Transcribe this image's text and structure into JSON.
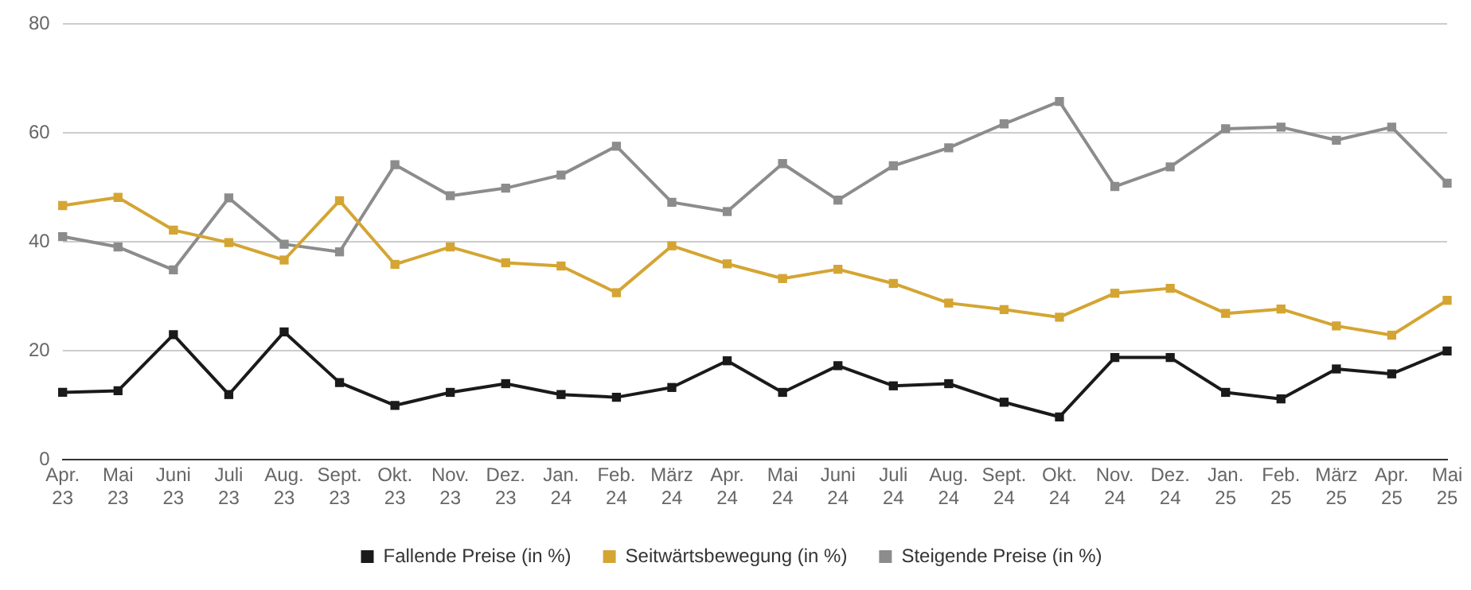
{
  "chart_data": {
    "type": "line",
    "categories": [
      "Apr. 23",
      "Mai 23",
      "Juni 23",
      "Juli 23",
      "Aug. 23",
      "Sept. 23",
      "Okt. 23",
      "Nov. 23",
      "Dez. 23",
      "Jan. 24",
      "Feb. 24",
      "März 24",
      "Apr. 24",
      "Mai 24",
      "Juni 24",
      "Juli 24",
      "Aug. 24",
      "Sept. 24",
      "Okt. 24",
      "Nov. 24",
      "Dez. 24",
      "Jan. 25",
      "Feb. 25",
      "März 25",
      "Apr. 25",
      "Mai 25"
    ],
    "series": [
      {
        "name": "Fallende Preise (in %)",
        "color": "#1a1a1a",
        "values": [
          12.4,
          12.7,
          23,
          12,
          23.5,
          14.2,
          10,
          12.4,
          14,
          12,
          11.5,
          13.3,
          18.2,
          12.4,
          17.3,
          13.6,
          14,
          10.6,
          7.9,
          18.8,
          18.8,
          12.4,
          11.2,
          16.7,
          15.8,
          20
        ]
      },
      {
        "name": "Seitwärtsbewegung (in %)",
        "color": "#d4a533",
        "values": [
          46.7,
          48.2,
          42.2,
          39.9,
          36.7,
          47.6,
          35.9,
          39.1,
          36.2,
          35.6,
          30.7,
          39.3,
          36,
          33.3,
          35,
          32.4,
          28.8,
          27.6,
          26.2,
          30.6,
          31.5,
          26.9,
          27.7,
          24.6,
          22.9,
          29.3
        ]
      },
      {
        "name": "Steigende Preise (in %)",
        "color": "#8c8c8c",
        "values": [
          41,
          39.1,
          34.9,
          48.1,
          39.6,
          38.2,
          54.2,
          48.5,
          49.9,
          52.3,
          57.6,
          47.3,
          45.6,
          54.4,
          47.7,
          54,
          57.3,
          61.7,
          65.8,
          50.2,
          53.8,
          60.8,
          61.1,
          58.7,
          61.1,
          50.8
        ]
      }
    ],
    "ylim": [
      0,
      80
    ],
    "yticks": [
      0,
      20,
      40,
      60,
      80
    ],
    "grid": "y",
    "legend": "bottom",
    "marker": "square",
    "line_style": "solid"
  }
}
